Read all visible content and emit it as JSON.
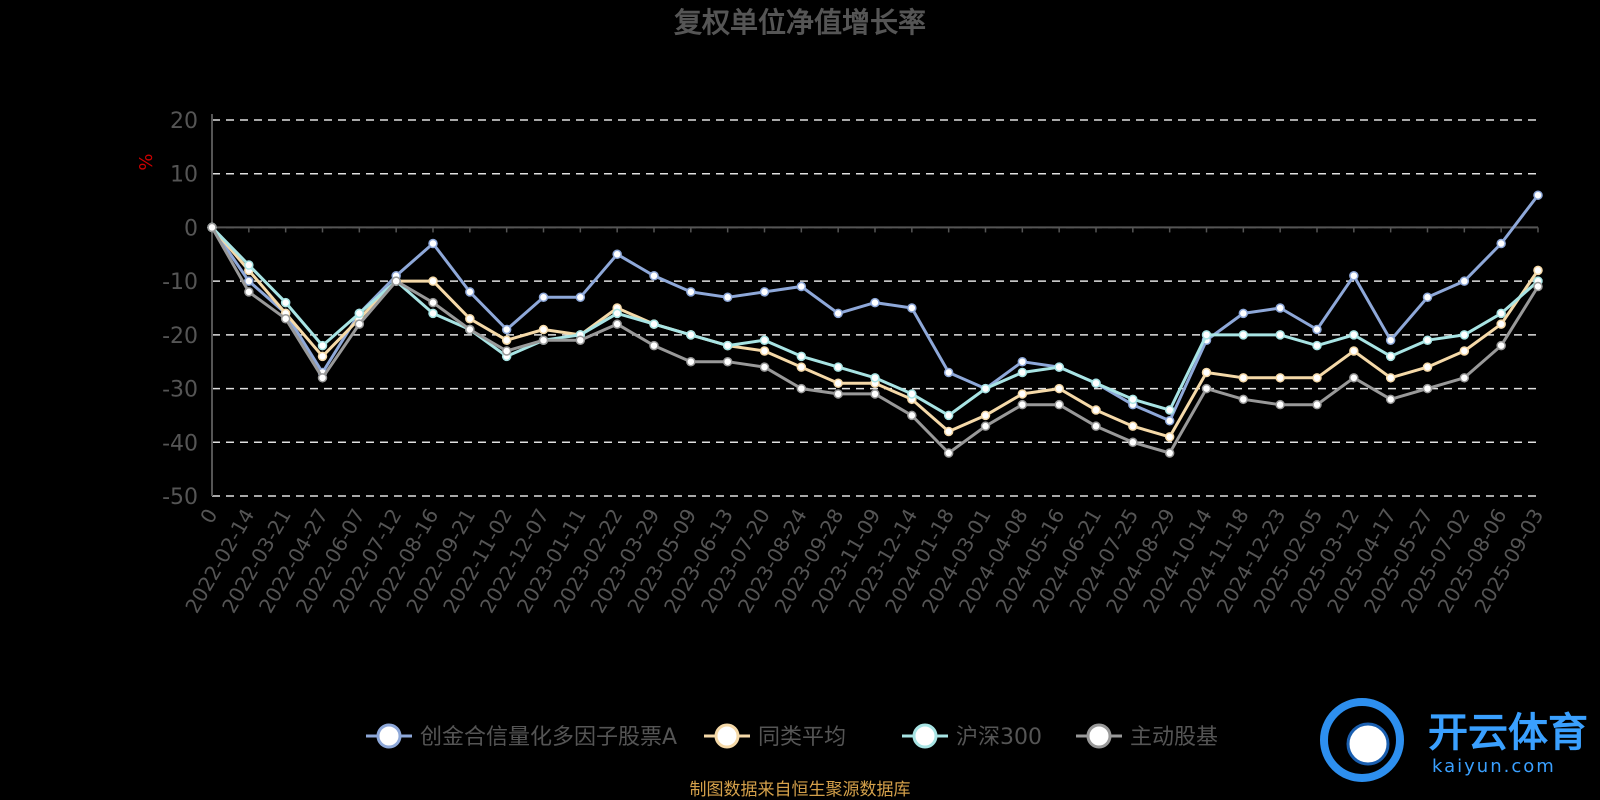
{
  "chart_data": {
    "type": "line",
    "title": "复权单位净值增长率",
    "ylabel": "%",
    "ylim": [
      -50,
      20
    ],
    "yticks": [
      "20",
      "10",
      "0",
      "-10",
      "-20",
      "-30",
      "-40",
      "-50"
    ],
    "grid": true,
    "legend_position": "bottom",
    "x": [
      "0",
      "2022-02-14",
      "2022-03-21",
      "2022-04-27",
      "2022-06-07",
      "2022-07-12",
      "2022-08-16",
      "2022-09-21",
      "2022-11-02",
      "2022-12-07",
      "2023-01-11",
      "2023-02-22",
      "2023-03-29",
      "2023-05-09",
      "2023-06-13",
      "2023-07-20",
      "2023-08-24",
      "2023-09-28",
      "2023-11-09",
      "2023-12-14",
      "2024-01-18",
      "2024-03-01",
      "2024-04-08",
      "2024-05-16",
      "2024-06-21",
      "2024-07-25",
      "2024-08-29",
      "2024-10-14",
      "2024-11-18",
      "2024-12-23",
      "2025-02-05",
      "2025-03-12",
      "2025-04-17",
      "2025-05-27",
      "2025-07-02",
      "2025-08-06",
      "2025-09-03"
    ],
    "series": [
      {
        "name": "创金合信量化多因子股票A",
        "color": "#8ea8d9",
        "values": [
          0,
          -10,
          -16,
          -27,
          -16,
          -9,
          -3,
          -12,
          -19,
          -13,
          -13,
          -5,
          -9,
          -12,
          -13,
          -12,
          -11,
          -16,
          -14,
          -15,
          -27,
          -30,
          -25,
          -26,
          -29,
          -33,
          -36,
          -21,
          -16,
          -15,
          -19,
          -9,
          -21,
          -13,
          -10,
          -3,
          6
        ]
      },
      {
        "name": "同类平均",
        "color": "#f5d9a8",
        "values": [
          0,
          -8,
          -16,
          -24,
          -17,
          -10,
          -10,
          -17,
          -21,
          -19,
          -20,
          -15,
          -18,
          -20,
          -22,
          -23,
          -26,
          -29,
          -29,
          -32,
          -38,
          -35,
          -31,
          -30,
          -34,
          -37,
          -39,
          -27,
          -28,
          -28,
          -28,
          -23,
          -28,
          -26,
          -23,
          -18,
          -8
        ]
      },
      {
        "name": "沪深300",
        "color": "#a8e4e4",
        "values": [
          0,
          -7,
          -14,
          -22,
          -16,
          -10,
          -16,
          -19,
          -24,
          -21,
          -20,
          -16,
          -18,
          -20,
          -22,
          -21,
          -24,
          -26,
          -28,
          -31,
          -35,
          -30,
          -27,
          -26,
          -29,
          -32,
          -34,
          -20,
          -20,
          -20,
          -22,
          -20,
          -24,
          -21,
          -20,
          -16,
          -10
        ]
      },
      {
        "name": "主动股基",
        "color": "#999999",
        "values": [
          0,
          -12,
          -17,
          -28,
          -18,
          -10,
          -14,
          -19,
          -23,
          -21,
          -21,
          -18,
          -22,
          -25,
          -25,
          -26,
          -30,
          -31,
          -31,
          -35,
          -42,
          -37,
          -33,
          -33,
          -37,
          -40,
          -42,
          -30,
          -32,
          -33,
          -33,
          -28,
          -32,
          -30,
          -28,
          -22,
          -11
        ]
      }
    ]
  },
  "source_note": "制图数据来自恒生聚源数据库",
  "logo": {
    "name": "开云体育",
    "sub": "kaiyun.com"
  }
}
